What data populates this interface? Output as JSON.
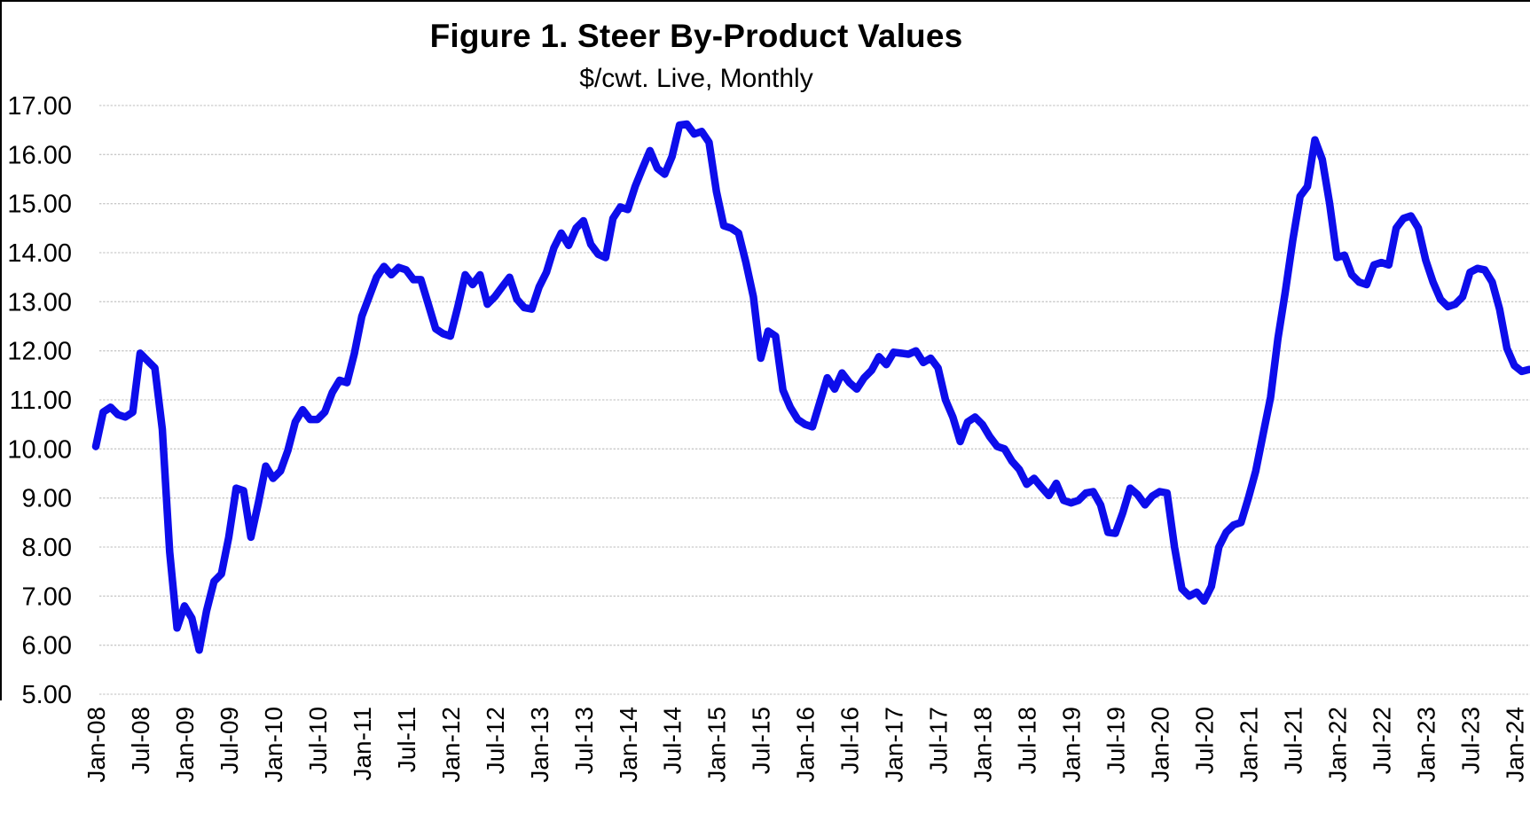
{
  "page": {
    "background": "#ffffff",
    "frame_border_color": "#000000"
  },
  "chart_data": {
    "type": "line",
    "title": "Figure 1.  Steer By-Product Values",
    "subtitle": "$/cwt. Live, Monthly",
    "legend": "none",
    "grid": "horizontal-only",
    "x_start": "Jan-08",
    "x_end": "Mar-24",
    "x_freq": "monthly",
    "x_tick_interval_months": 6,
    "x_tick_labels": [
      "Jan-08",
      "Jul-08",
      "Jan-09",
      "Jul-09",
      "Jan-10",
      "Jul-10",
      "Jan-11",
      "Jul-11",
      "Jan-12",
      "Jul-12",
      "Jan-13",
      "Jul-13",
      "Jan-14",
      "Jul-14",
      "Jan-15",
      "Jul-15",
      "Jan-16",
      "Jul-16",
      "Jan-17",
      "Jul-17",
      "Jan-18",
      "Jul-18",
      "Jan-19",
      "Jul-19",
      "Jan-20",
      "Jul-20",
      "Jan-21",
      "Jul-21",
      "Jan-22",
      "Jul-22",
      "Jan-23",
      "Jul-23",
      "Jan-24"
    ],
    "y_tick_labels": [
      "17.00",
      "16.00",
      "15.00",
      "14.00",
      "13.00",
      "12.00",
      "11.00",
      "10.00",
      "9.00",
      "8.00",
      "7.00",
      "6.00",
      "5.00"
    ],
    "ylim": [
      5,
      17
    ],
    "y_step": 1,
    "line_color": "#0d0deb",
    "gridline_color": "#c9c9c9",
    "series": [
      {
        "name": "steer-by-product-value",
        "values": [
          10.05,
          10.75,
          10.85,
          10.7,
          10.65,
          10.75,
          11.95,
          11.8,
          11.65,
          10.4,
          7.9,
          6.35,
          6.8,
          6.55,
          5.9,
          6.7,
          7.3,
          7.45,
          8.2,
          9.2,
          9.15,
          8.2,
          8.9,
          9.65,
          9.4,
          9.55,
          9.97,
          10.55,
          10.8,
          10.6,
          10.6,
          10.75,
          11.15,
          11.4,
          11.35,
          11.95,
          12.7,
          13.1,
          13.5,
          13.72,
          13.55,
          13.7,
          13.65,
          13.45,
          13.45,
          12.95,
          12.45,
          12.35,
          12.3,
          12.9,
          13.55,
          13.35,
          13.55,
          12.95,
          13.1,
          13.3,
          13.5,
          13.05,
          12.88,
          12.85,
          13.3,
          13.6,
          14.1,
          14.4,
          14.15,
          14.5,
          14.65,
          14.17,
          13.97,
          13.9,
          14.7,
          14.93,
          14.88,
          15.35,
          15.72,
          16.08,
          15.72,
          15.6,
          15.96,
          16.6,
          16.62,
          16.42,
          16.47,
          16.25,
          15.25,
          14.55,
          14.5,
          14.4,
          13.8,
          13.1,
          11.85,
          12.4,
          12.3,
          11.2,
          10.85,
          10.6,
          10.5,
          10.45,
          10.95,
          11.45,
          11.22,
          11.55,
          11.35,
          11.22,
          11.45,
          11.6,
          11.88,
          11.72,
          11.97,
          11.95,
          11.93,
          12.0,
          11.76,
          11.85,
          11.65,
          11.0,
          10.65,
          10.15,
          10.55,
          10.65,
          10.5,
          10.25,
          10.05,
          10.0,
          9.75,
          9.58,
          9.28,
          9.4,
          9.22,
          9.05,
          9.3,
          8.95,
          8.9,
          8.95,
          9.1,
          9.13,
          8.86,
          8.3,
          8.28,
          8.7,
          9.2,
          9.07,
          8.86,
          9.04,
          9.13,
          9.1,
          8.0,
          7.15,
          7.0,
          7.08,
          6.9,
          7.2,
          8.0,
          8.3,
          8.45,
          8.5,
          9.0,
          9.55,
          10.3,
          11.05,
          12.25,
          13.2,
          14.25,
          15.15,
          15.35,
          16.3,
          15.9,
          15.0,
          13.9,
          13.95,
          13.55,
          13.4,
          13.35,
          13.75,
          13.8,
          13.75,
          14.5,
          14.7,
          14.75,
          14.5,
          13.85,
          13.4,
          13.05,
          12.9,
          12.95,
          13.1,
          13.6,
          13.68,
          13.65,
          13.4,
          12.85,
          12.05,
          11.7,
          11.58,
          11.62
        ]
      }
    ]
  }
}
